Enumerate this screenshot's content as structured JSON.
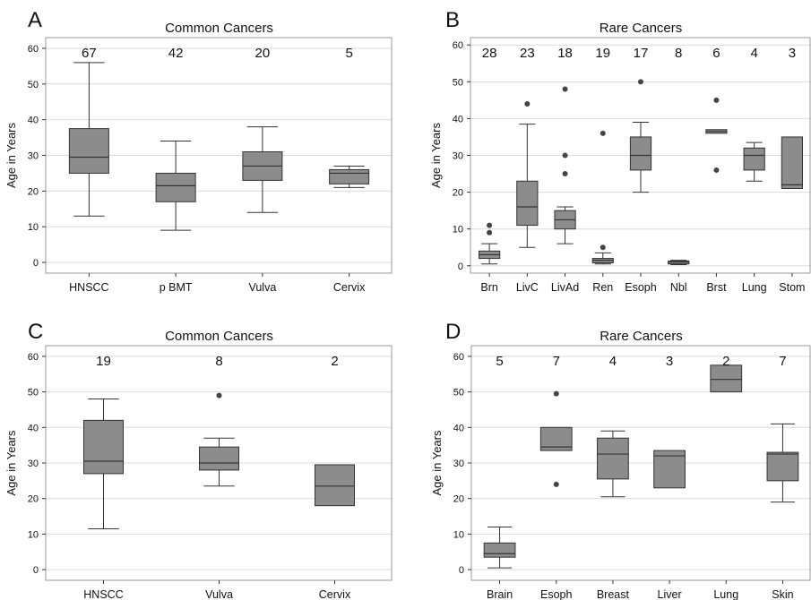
{
  "colors": {
    "box_fill": "#8c8c8c",
    "stroke": "#333333",
    "grid": "#dcdcdc",
    "frame": "#9a9a9a",
    "text": "#111111"
  },
  "chart_data": [
    {
      "panel": "A",
      "type": "box",
      "title": "Common Cancers",
      "xlabel": "",
      "ylabel": "Age in Years",
      "ylim": [
        -3,
        63
      ],
      "yticks": [
        0,
        10,
        20,
        30,
        40,
        50,
        60
      ],
      "grid": true,
      "categories": [
        "HNSCC",
        "p BMT",
        "Vulva",
        "Cervix"
      ],
      "counts": [
        "67",
        "42",
        "20",
        "5"
      ],
      "boxes": [
        {
          "whisker_low": 13,
          "q1": 25,
          "median": 29.5,
          "q3": 37.5,
          "whisker_high": 56,
          "outliers": []
        },
        {
          "whisker_low": 9,
          "q1": 17,
          "median": 21.5,
          "q3": 25,
          "whisker_high": 34,
          "outliers": []
        },
        {
          "whisker_low": 14,
          "q1": 23,
          "median": 27,
          "q3": 31,
          "whisker_high": 38,
          "outliers": []
        },
        {
          "whisker_low": 21,
          "q1": 22,
          "median": 25,
          "q3": 26,
          "whisker_high": 27,
          "outliers": []
        }
      ]
    },
    {
      "panel": "B",
      "type": "box",
      "title": "Rare Cancers",
      "xlabel": "",
      "ylabel": "Age in Years",
      "ylim": [
        -2,
        62
      ],
      "yticks": [
        0,
        10,
        20,
        30,
        40,
        50,
        60
      ],
      "grid": true,
      "categories": [
        "Brn",
        "LivC",
        "LivAd",
        "Ren",
        "Esoph",
        "Nbl",
        "Brst",
        "Lung",
        "Stom"
      ],
      "counts": [
        "28",
        "23",
        "18",
        "19",
        "17",
        "8",
        "6",
        "4",
        "3"
      ],
      "boxes": [
        {
          "whisker_low": 0.5,
          "q1": 2,
          "median": 3,
          "q3": 4,
          "whisker_high": 6,
          "outliers": [
            9,
            11
          ]
        },
        {
          "whisker_low": 5,
          "q1": 11,
          "median": 16,
          "q3": 23,
          "whisker_high": 38.5,
          "outliers": [
            44
          ]
        },
        {
          "whisker_low": 6,
          "q1": 10,
          "median": 12.5,
          "q3": 15,
          "whisker_high": 16,
          "outliers": [
            25,
            30,
            48
          ]
        },
        {
          "whisker_low": 0.5,
          "q1": 0.8,
          "median": 1.5,
          "q3": 2,
          "whisker_high": 3.5,
          "outliers": [
            5,
            36
          ]
        },
        {
          "whisker_low": 20,
          "q1": 26,
          "median": 30,
          "q3": 35,
          "whisker_high": 39,
          "outliers": [
            50
          ]
        },
        {
          "whisker_low": 0.3,
          "q1": 0.5,
          "median": 1,
          "q3": 1.3,
          "whisker_high": 1.5,
          "outliers": []
        },
        {
          "whisker_low": 36,
          "q1": 36,
          "median": 36.5,
          "q3": 37,
          "whisker_high": 37,
          "outliers": [
            26,
            45
          ]
        },
        {
          "whisker_low": 23,
          "q1": 26,
          "median": 30,
          "q3": 32,
          "whisker_high": 33.5,
          "outliers": []
        },
        {
          "whisker_low": 21,
          "q1": 21,
          "median": 22,
          "q3": 35,
          "whisker_high": 35,
          "outliers": []
        }
      ]
    },
    {
      "panel": "C",
      "type": "box",
      "title": "Common Cancers",
      "xlabel": "",
      "ylabel": "Age in Years",
      "ylim": [
        -3,
        63
      ],
      "yticks": [
        0,
        10,
        20,
        30,
        40,
        50,
        60
      ],
      "grid": true,
      "categories": [
        "HNSCC",
        "Vulva",
        "Cervix"
      ],
      "counts": [
        "19",
        "8",
        "2"
      ],
      "boxes": [
        {
          "whisker_low": 11.5,
          "q1": 27,
          "median": 30.5,
          "q3": 42,
          "whisker_high": 48,
          "outliers": []
        },
        {
          "whisker_low": 23.5,
          "q1": 28,
          "median": 30,
          "q3": 34.5,
          "whisker_high": 37,
          "outliers": [
            49
          ]
        },
        {
          "whisker_low": 18,
          "q1": 18,
          "median": 23.5,
          "q3": 29.5,
          "whisker_high": 29.5,
          "outliers": []
        }
      ]
    },
    {
      "panel": "D",
      "type": "box",
      "title": "Rare Cancers",
      "xlabel": "",
      "ylabel": "Age in Years",
      "ylim": [
        -3,
        63
      ],
      "yticks": [
        0,
        10,
        20,
        30,
        40,
        50,
        60
      ],
      "grid": true,
      "categories": [
        "Brain",
        "Esoph",
        "Breast",
        "Liver",
        "Lung",
        "Skin"
      ],
      "counts": [
        "5",
        "7",
        "4",
        "3",
        "2",
        "7"
      ],
      "boxes": [
        {
          "whisker_low": 0.5,
          "q1": 3.5,
          "median": 4.5,
          "q3": 7.5,
          "whisker_high": 12,
          "outliers": []
        },
        {
          "whisker_low": 33.5,
          "q1": 33.5,
          "median": 34.5,
          "q3": 40,
          "whisker_high": 40,
          "outliers": [
            24,
            49.5
          ]
        },
        {
          "whisker_low": 20.5,
          "q1": 25.5,
          "median": 32.5,
          "q3": 37,
          "whisker_high": 39,
          "outliers": []
        },
        {
          "whisker_low": 23,
          "q1": 23,
          "median": 32,
          "q3": 33.5,
          "whisker_high": 33.5,
          "outliers": []
        },
        {
          "whisker_low": 50,
          "q1": 50,
          "median": 53.5,
          "q3": 57.5,
          "whisker_high": 57.5,
          "outliers": []
        },
        {
          "whisker_low": 19,
          "q1": 25,
          "median": 32.5,
          "q3": 33,
          "whisker_high": 41,
          "outliers": []
        }
      ]
    }
  ]
}
